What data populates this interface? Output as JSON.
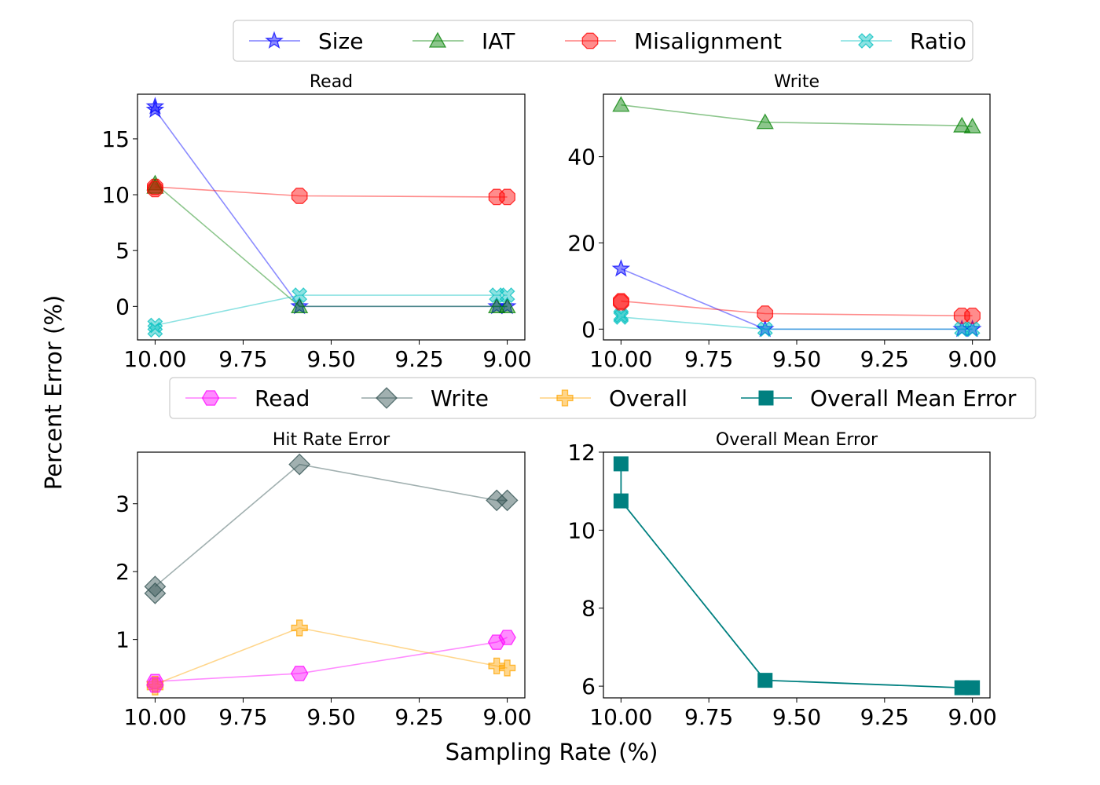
{
  "figure": {
    "xlabel": "Sampling Rate (%)",
    "ylabel": "Percent Error (%)"
  },
  "legends": [
    {
      "entries": [
        {
          "label": "Size",
          "color": "#0000ff",
          "marker": "star"
        },
        {
          "label": "IAT",
          "color": "#008000",
          "marker": "triangle"
        },
        {
          "label": "Misalignment",
          "color": "#ff0000",
          "marker": "octagon"
        },
        {
          "label": "Ratio",
          "color": "#00bfbf",
          "marker": "x"
        }
      ]
    },
    {
      "entries": [
        {
          "label": "Read",
          "color": "#ff00ff",
          "marker": "hexagon"
        },
        {
          "label": "Write",
          "color": "#2f4f4f",
          "marker": "diamond"
        },
        {
          "label": "Overall",
          "color": "#ffa500",
          "marker": "plus"
        },
        {
          "label": "Overall Mean Error",
          "color": "#008080",
          "marker": "square"
        }
      ]
    }
  ],
  "chart_data": [
    {
      "type": "line",
      "title": "Read",
      "xlim": [
        10.05,
        8.95
      ],
      "ylim": [
        -3,
        19
      ],
      "xticks": [
        10.0,
        9.75,
        9.5,
        9.25,
        9.0
      ],
      "xtick_labels": [
        "10.00",
        "9.75",
        "9.50",
        "9.25",
        "9.00"
      ],
      "yticks": [
        0,
        5,
        10,
        15
      ],
      "ytick_labels": [
        "0",
        "5",
        "10",
        "15"
      ],
      "x": [
        10.0,
        9.59,
        9.03,
        9.0
      ],
      "extra_points": [
        {
          "series": "Size",
          "x": 10.0,
          "y": 17.9
        },
        {
          "series": "IAT",
          "x": 10.0,
          "y": 10.7
        },
        {
          "series": "Misalignment",
          "x": 10.0,
          "y": 10.5
        },
        {
          "series": "Ratio",
          "x": 10.0,
          "y": -2.1
        }
      ],
      "series": [
        {
          "name": "Size",
          "values": [
            17.6,
            0.0,
            0.0,
            0.0
          ]
        },
        {
          "name": "IAT",
          "values": [
            11.0,
            0.0,
            0.0,
            0.0
          ]
        },
        {
          "name": "Misalignment",
          "values": [
            10.7,
            9.9,
            9.8,
            9.8
          ]
        },
        {
          "name": "Ratio",
          "values": [
            -1.7,
            1.0,
            1.0,
            1.0
          ]
        }
      ]
    },
    {
      "type": "line",
      "title": "Write",
      "xlim": [
        10.05,
        8.95
      ],
      "ylim": [
        -2.5,
        54.5
      ],
      "xticks": [
        10.0,
        9.75,
        9.5,
        9.25,
        9.0
      ],
      "xtick_labels": [
        "10.00",
        "9.75",
        "9.50",
        "9.25",
        "9.00"
      ],
      "yticks": [
        0,
        20,
        40
      ],
      "ytick_labels": [
        "0",
        "20",
        "40"
      ],
      "x": [
        10.0,
        9.59,
        9.03,
        9.0
      ],
      "extra_points": [
        {
          "series": "Ratio",
          "x": 10.0,
          "y": 3.2
        },
        {
          "series": "Misalignment",
          "x": 10.0,
          "y": 6.2
        }
      ],
      "series": [
        {
          "name": "Size",
          "values": [
            14.0,
            0.0,
            0.0,
            0.0
          ]
        },
        {
          "name": "IAT",
          "values": [
            52.0,
            48.0,
            47.2,
            47.0
          ]
        },
        {
          "name": "Misalignment",
          "values": [
            6.5,
            3.6,
            3.1,
            3.1
          ]
        },
        {
          "name": "Ratio",
          "values": [
            2.8,
            0.0,
            0.0,
            0.0
          ]
        }
      ]
    },
    {
      "type": "line",
      "title": "Hit Rate Error",
      "xlim": [
        10.05,
        8.95
      ],
      "ylim": [
        0.14,
        3.76
      ],
      "xticks": [
        10.0,
        9.75,
        9.5,
        9.25,
        9.0
      ],
      "xtick_labels": [
        "10.00",
        "9.75",
        "9.50",
        "9.25",
        "9.00"
      ],
      "yticks": [
        1,
        2,
        3
      ],
      "ytick_labels": [
        "1",
        "2",
        "3"
      ],
      "x": [
        10.0,
        9.59,
        9.03,
        9.0
      ],
      "extra_points": [
        {
          "series": "Write",
          "x": 10.0,
          "y": 1.68
        },
        {
          "series": "Overall",
          "x": 10.0,
          "y": 0.3
        },
        {
          "series": "Read",
          "x": 10.0,
          "y": 0.33
        }
      ],
      "series": [
        {
          "name": "Read",
          "values": [
            0.38,
            0.5,
            0.96,
            1.03
          ]
        },
        {
          "name": "Write",
          "values": [
            1.78,
            3.58,
            3.05,
            3.05
          ]
        },
        {
          "name": "Overall",
          "values": [
            0.34,
            1.17,
            0.61,
            0.58
          ]
        }
      ]
    },
    {
      "type": "line",
      "title": "Overall Mean Error",
      "xlim": [
        10.05,
        8.95
      ],
      "ylim": [
        5.7,
        12.0
      ],
      "xticks": [
        10.0,
        9.75,
        9.5,
        9.25,
        9.0
      ],
      "xtick_labels": [
        "10.00",
        "9.75",
        "9.50",
        "9.25",
        "9.00"
      ],
      "yticks": [
        6,
        8,
        10,
        12
      ],
      "ytick_labels": [
        "6",
        "8",
        "10",
        "12"
      ],
      "x": [
        10.0,
        10.0,
        9.59,
        9.03,
        9.0
      ],
      "series": [
        {
          "name": "Overall Mean Error",
          "values": [
            11.7,
            10.75,
            6.15,
            5.96,
            5.96
          ]
        }
      ]
    }
  ]
}
